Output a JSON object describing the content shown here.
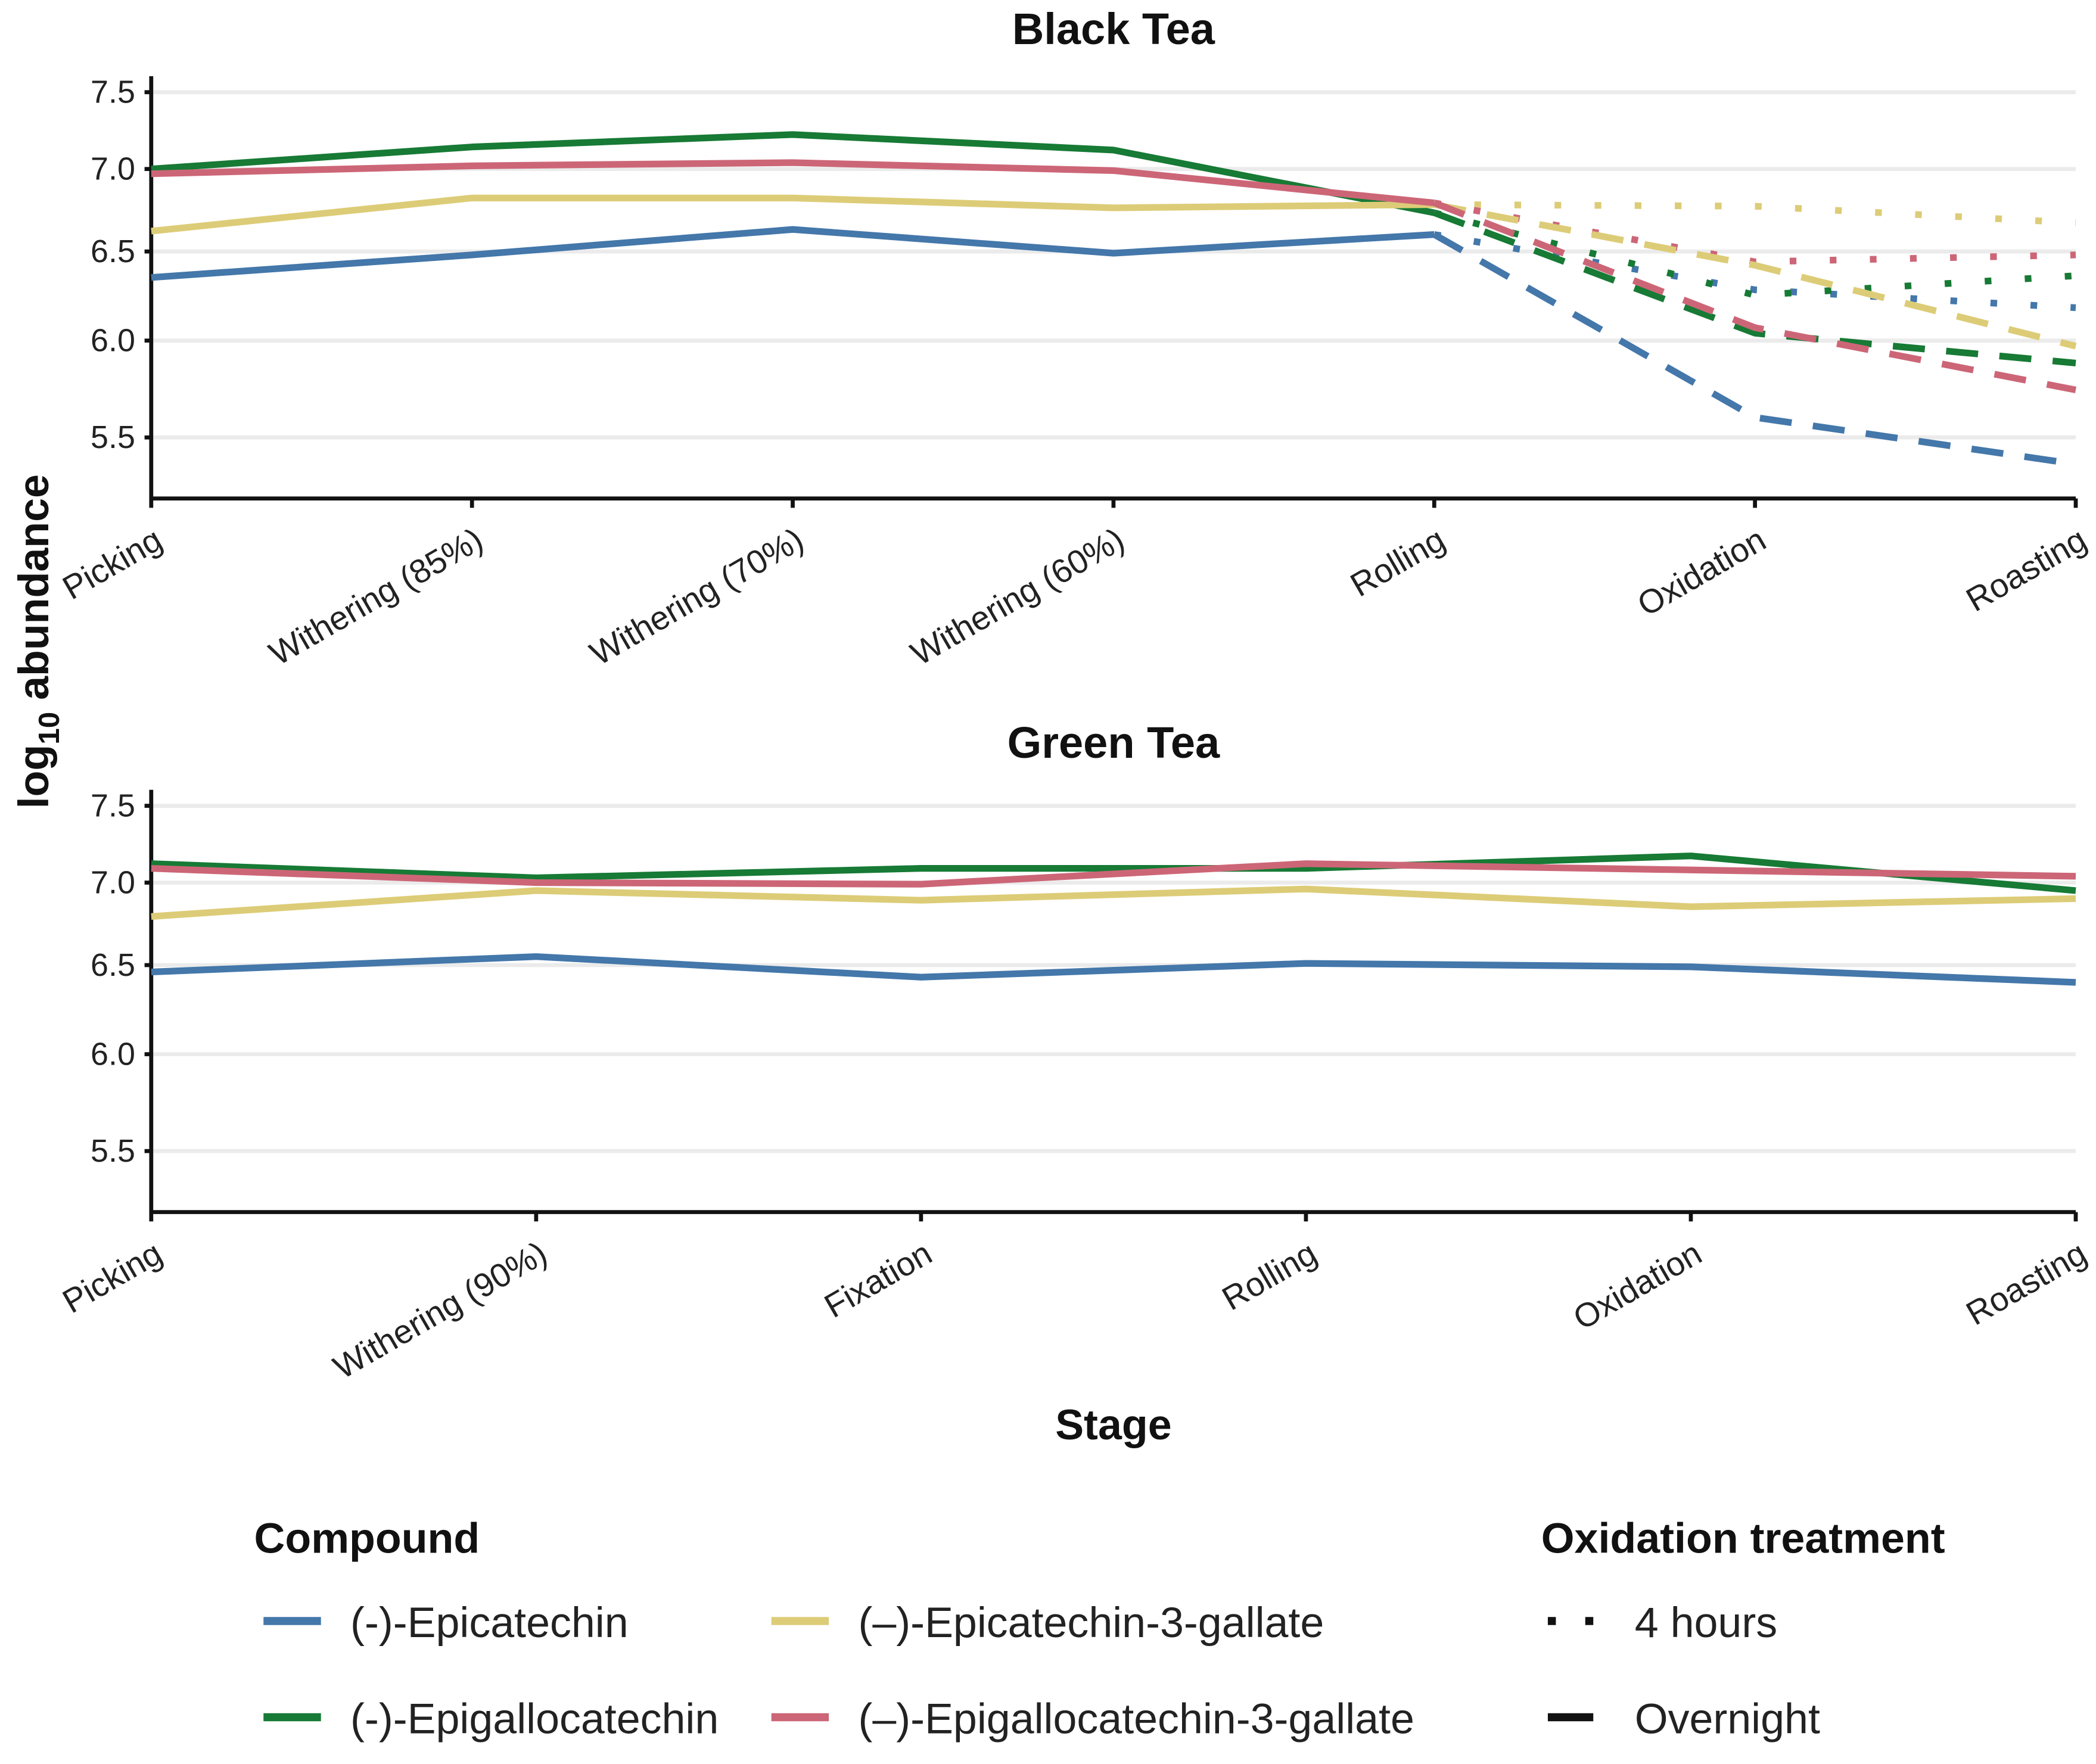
{
  "colors": {
    "epicatechin": "#4477AA",
    "epigallocatechin": "#177A35",
    "ecg": "#DDCC77",
    "egcg": "#CC6677"
  },
  "axis": {
    "ylabel_main": "log",
    "ylabel_sub": "10",
    "ylabel_rest": " abundance",
    "xlabel": "Stage"
  },
  "legend": {
    "compound_title": "Compound",
    "compounds": [
      {
        "key": "epicatechin",
        "label": "(-)-Epicatechin"
      },
      {
        "key": "epigallocatechin",
        "label": "(-)-Epigallocatechin"
      },
      {
        "key": "ecg",
        "label": "(–)-Epicatechin-3-gallate"
      },
      {
        "key": "egcg",
        "label": "(–)-Epigallocatechin-3-gallate"
      }
    ],
    "treatment_title": "Oxidation treatment",
    "treatments": [
      {
        "key": "4h",
        "label": "4 hours"
      },
      {
        "key": "overnight",
        "label": "Overnight"
      }
    ]
  },
  "chart_data": [
    {
      "type": "line",
      "title": "Black Tea",
      "xlabel": "Stage",
      "ylabel": "log10 abundance",
      "yscale": "log",
      "ylim": [
        5.2,
        7.6
      ],
      "yticks": [
        "7.5",
        "7.0",
        "6.5",
        "6.0",
        "5.5"
      ],
      "grid": true,
      "categories": [
        "Picking",
        "Withering (85%)",
        "Withering (70%)",
        "Withering (60%)",
        "Rolling",
        "Oxidation",
        "Roasting"
      ],
      "series": [
        {
          "compound": "epicatechin",
          "treatment": "none",
          "values": [
            6.35,
            6.48,
            6.63,
            6.49,
            6.6,
            null,
            null
          ]
        },
        {
          "compound": "epigallocatechin",
          "treatment": "none",
          "values": [
            7.0,
            7.14,
            7.22,
            7.12,
            6.73,
            null,
            null
          ]
        },
        {
          "compound": "ecg",
          "treatment": "none",
          "values": [
            6.62,
            6.82,
            6.82,
            6.76,
            6.78,
            null,
            null
          ]
        },
        {
          "compound": "egcg",
          "treatment": "none",
          "values": [
            6.97,
            7.02,
            7.04,
            6.99,
            6.79,
            null,
            null
          ]
        },
        {
          "compound": "epicatechin",
          "treatment": "overnight",
          "values": [
            null,
            null,
            null,
            null,
            6.6,
            5.6,
            5.37
          ]
        },
        {
          "compound": "epigallocatechin",
          "treatment": "overnight",
          "values": [
            null,
            null,
            null,
            null,
            6.73,
            6.04,
            5.88
          ]
        },
        {
          "compound": "ecg",
          "treatment": "overnight",
          "values": [
            null,
            null,
            null,
            null,
            6.78,
            6.42,
            5.97
          ]
        },
        {
          "compound": "egcg",
          "treatment": "overnight",
          "values": [
            null,
            null,
            null,
            null,
            6.79,
            6.07,
            5.74
          ]
        },
        {
          "compound": "epicatechin",
          "treatment": "4h",
          "values": [
            null,
            null,
            null,
            null,
            6.6,
            6.28,
            6.18
          ]
        },
        {
          "compound": "epigallocatechin",
          "treatment": "4h",
          "values": [
            null,
            null,
            null,
            null,
            6.73,
            6.25,
            6.36
          ]
        },
        {
          "compound": "ecg",
          "treatment": "4h",
          "values": [
            null,
            null,
            null,
            null,
            6.78,
            6.77,
            6.67
          ]
        },
        {
          "compound": "egcg",
          "treatment": "4h",
          "values": [
            null,
            null,
            null,
            null,
            6.79,
            6.44,
            6.48
          ]
        }
      ]
    },
    {
      "type": "line",
      "title": "Green Tea",
      "xlabel": "Stage",
      "ylabel": "log10 abundance",
      "yscale": "log",
      "ylim": [
        5.2,
        7.6
      ],
      "yticks": [
        "7.5",
        "7.0",
        "6.5",
        "6.0",
        "5.5"
      ],
      "grid": true,
      "categories": [
        "Picking",
        "Withering (90%)",
        "Fixation",
        "Rolling",
        "Oxidation",
        "Roasting"
      ],
      "series": [
        {
          "compound": "epicatechin",
          "treatment": "none",
          "values": [
            6.46,
            6.55,
            6.43,
            6.51,
            6.49,
            6.4
          ]
        },
        {
          "compound": "epigallocatechin",
          "treatment": "none",
          "values": [
            7.12,
            7.03,
            7.09,
            7.09,
            7.17,
            6.95
          ]
        },
        {
          "compound": "ecg",
          "treatment": "none",
          "values": [
            6.79,
            6.95,
            6.89,
            6.96,
            6.85,
            6.9
          ]
        },
        {
          "compound": "egcg",
          "treatment": "none",
          "values": [
            7.09,
            7.0,
            6.99,
            7.12,
            7.08,
            7.04
          ]
        }
      ]
    }
  ]
}
